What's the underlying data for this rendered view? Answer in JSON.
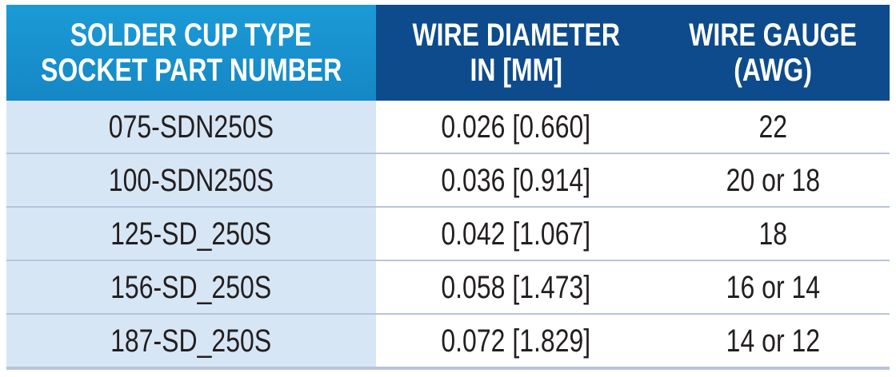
{
  "table": {
    "header": [
      [
        "SOLDER CUP TYPE",
        "SOCKET PART NUMBER"
      ],
      [
        "WIRE DIAMETER",
        "IN [MM]"
      ],
      [
        "WIRE GAUGE",
        "(AWG)"
      ]
    ],
    "rows": [
      [
        "075-SDN250S",
        "0.026 [0.660]",
        "22"
      ],
      [
        "100-SDN250S",
        "0.036 [0.914]",
        "20 or 18"
      ],
      [
        "125-SD_250S",
        "0.042 [1.067]",
        "18"
      ],
      [
        "156-SD_250S",
        "0.058 [1.473]",
        "16 or 14"
      ],
      [
        "187-SD_250S",
        "0.072 [1.829]",
        "14 or 12"
      ]
    ]
  }
}
